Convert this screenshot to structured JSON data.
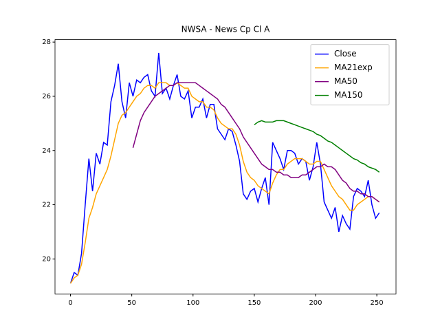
{
  "chart_data": {
    "type": "line",
    "title": "NWSA - News Cp Cl A",
    "x": [
      0,
      3,
      6,
      9,
      12,
      15,
      18,
      21,
      24,
      27,
      30,
      33,
      36,
      39,
      42,
      45,
      48,
      51,
      54,
      57,
      60,
      63,
      66,
      69,
      72,
      75,
      78,
      81,
      84,
      87,
      90,
      93,
      96,
      99,
      102,
      105,
      108,
      111,
      114,
      117,
      120,
      123,
      126,
      129,
      132,
      135,
      138,
      141,
      144,
      147,
      150,
      153,
      156,
      159,
      162,
      165,
      168,
      171,
      174,
      177,
      180,
      183,
      186,
      189,
      192,
      195,
      198,
      201,
      204,
      207,
      210,
      213,
      216,
      219,
      222,
      225,
      228,
      231,
      234,
      237,
      240,
      243,
      246,
      249,
      252
    ],
    "series": [
      {
        "name": "Close",
        "color": "#0000ff",
        "values": [
          19.1,
          19.5,
          19.4,
          20.2,
          22.0,
          23.7,
          22.5,
          23.9,
          23.5,
          24.3,
          24.2,
          25.8,
          26.4,
          27.2,
          25.8,
          25.2,
          26.5,
          26.0,
          26.6,
          26.5,
          26.7,
          26.8,
          26.2,
          26.0,
          27.6,
          26.1,
          26.3,
          25.9,
          26.4,
          26.8,
          26.0,
          25.9,
          26.2,
          25.2,
          25.6,
          25.6,
          25.9,
          25.2,
          25.7,
          25.7,
          24.8,
          24.6,
          24.4,
          24.8,
          24.7,
          24.2,
          23.6,
          22.4,
          22.2,
          22.5,
          22.6,
          22.1,
          22.6,
          23.0,
          22.0,
          24.3,
          24.0,
          23.7,
          23.3,
          24.0,
          24.0,
          23.9,
          23.5,
          23.7,
          23.6,
          22.9,
          23.4,
          24.3,
          23.5,
          22.1,
          21.8,
          21.5,
          21.9,
          21.0,
          21.6,
          21.3,
          21.1,
          22.3,
          22.6,
          22.5,
          22.3,
          22.9,
          22.0,
          21.5,
          21.7
        ]
      },
      {
        "name": "MA21exp",
        "color": "#ffa500",
        "values": [
          19.1,
          19.3,
          19.4,
          19.8,
          20.6,
          21.5,
          21.9,
          22.4,
          22.7,
          23.0,
          23.3,
          23.8,
          24.4,
          25.0,
          25.3,
          25.4,
          25.6,
          25.8,
          26.0,
          26.1,
          26.3,
          26.4,
          26.4,
          26.3,
          26.5,
          26.5,
          26.5,
          26.4,
          26.4,
          26.5,
          26.4,
          26.3,
          26.3,
          26.0,
          25.9,
          25.8,
          25.8,
          25.6,
          25.6,
          25.5,
          25.2,
          25.0,
          24.9,
          24.8,
          24.8,
          24.6,
          24.2,
          23.6,
          23.2,
          23.0,
          22.9,
          22.7,
          22.6,
          22.5,
          22.4,
          22.8,
          23.1,
          23.3,
          23.3,
          23.5,
          23.6,
          23.7,
          23.7,
          23.7,
          23.6,
          23.5,
          23.5,
          23.6,
          23.6,
          23.3,
          23.0,
          22.7,
          22.5,
          22.3,
          22.2,
          22.0,
          21.8,
          21.8,
          22.0,
          22.1,
          22.2,
          22.3,
          22.3,
          22.2,
          22.1
        ]
      },
      {
        "name": "MA50",
        "color": "#800080",
        "values": [
          null,
          null,
          null,
          null,
          null,
          null,
          null,
          null,
          null,
          null,
          null,
          null,
          null,
          null,
          null,
          null,
          null,
          24.1,
          24.6,
          25.1,
          25.4,
          25.6,
          25.8,
          26.0,
          26.1,
          26.2,
          26.3,
          26.4,
          26.4,
          26.5,
          26.5,
          26.5,
          26.5,
          26.5,
          26.5,
          26.4,
          26.3,
          26.2,
          26.1,
          26.0,
          25.9,
          25.7,
          25.6,
          25.4,
          25.2,
          25.0,
          24.8,
          24.5,
          24.3,
          24.1,
          23.9,
          23.7,
          23.5,
          23.4,
          23.3,
          23.3,
          23.2,
          23.2,
          23.1,
          23.1,
          23.0,
          23.0,
          23.0,
          23.1,
          23.1,
          23.2,
          23.3,
          23.4,
          23.4,
          23.5,
          23.4,
          23.4,
          23.3,
          23.1,
          22.9,
          22.8,
          22.6,
          22.5,
          22.5,
          22.4,
          22.4,
          22.3,
          22.3,
          22.2,
          22.1
        ]
      },
      {
        "name": "MA150",
        "color": "#008000",
        "values": [
          null,
          null,
          null,
          null,
          null,
          null,
          null,
          null,
          null,
          null,
          null,
          null,
          null,
          null,
          null,
          null,
          null,
          null,
          null,
          null,
          null,
          null,
          null,
          null,
          null,
          null,
          null,
          null,
          null,
          null,
          null,
          null,
          null,
          null,
          null,
          null,
          null,
          null,
          null,
          null,
          null,
          null,
          null,
          null,
          null,
          null,
          null,
          null,
          null,
          null,
          24.95,
          25.05,
          25.1,
          25.05,
          25.05,
          25.05,
          25.1,
          25.1,
          25.1,
          25.05,
          25.0,
          24.95,
          24.9,
          24.85,
          24.8,
          24.75,
          24.7,
          24.6,
          24.55,
          24.45,
          24.35,
          24.3,
          24.2,
          24.1,
          24.0,
          23.9,
          23.8,
          23.7,
          23.65,
          23.55,
          23.5,
          23.4,
          23.35,
          23.3,
          23.2
        ]
      }
    ],
    "xlim": [
      -12.65,
      265.65
    ],
    "xticks": [
      0,
      50,
      100,
      150,
      200,
      250
    ],
    "ylim": [
      18.71,
      28.09
    ],
    "yticks": [
      20,
      22,
      24,
      26,
      28
    ],
    "legend": "upper right",
    "grid": false
  }
}
